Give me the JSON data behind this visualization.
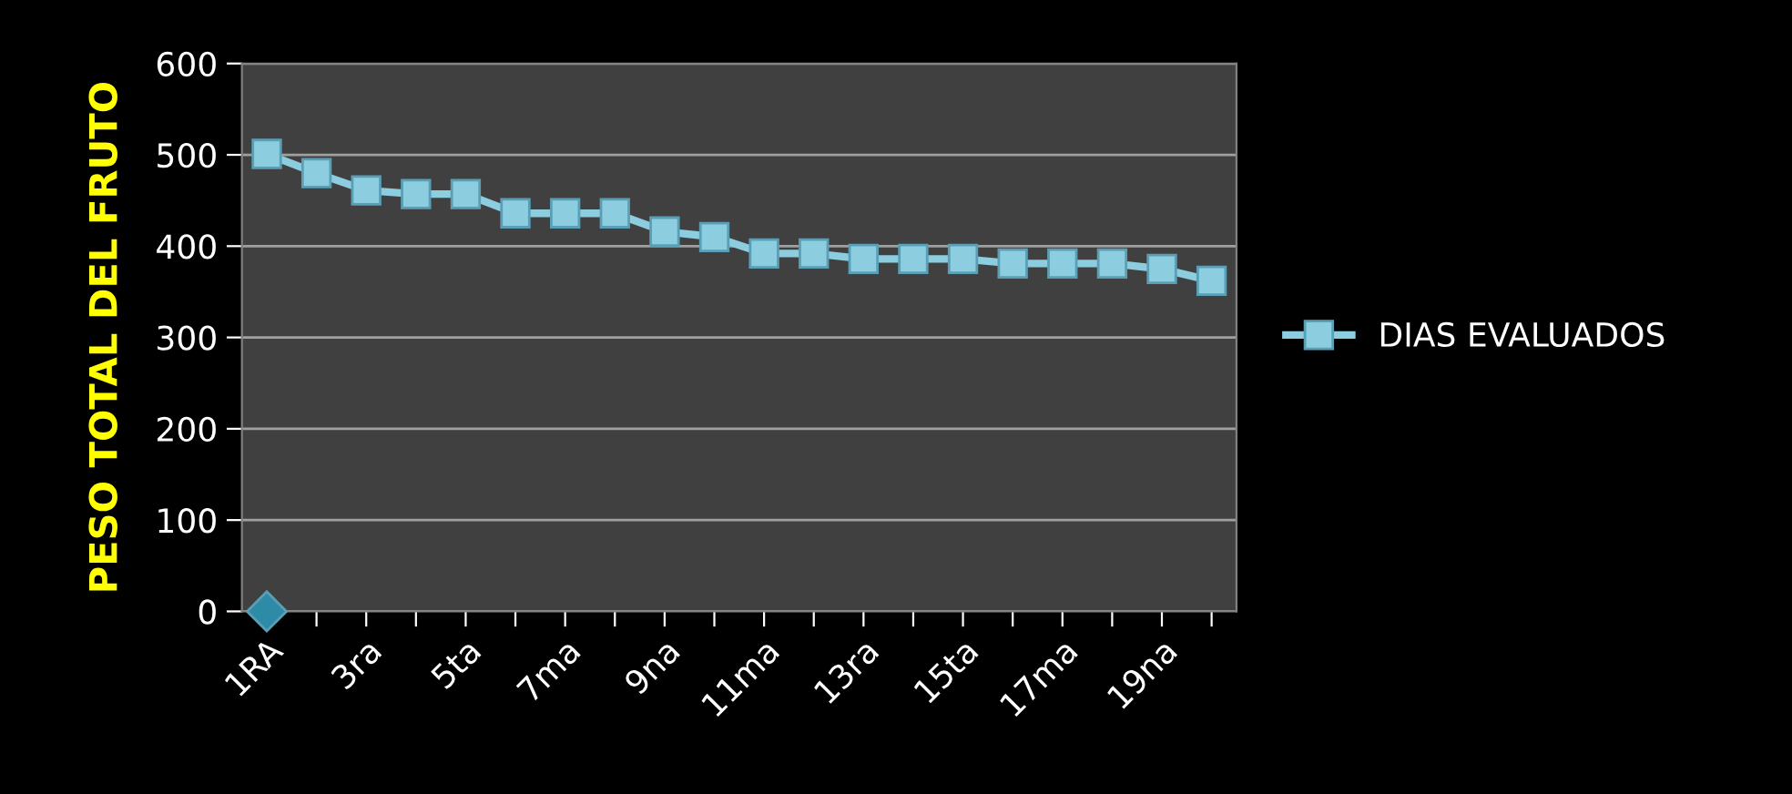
{
  "chart_data": {
    "type": "line",
    "ylabel": "PESO TOTAL DEL FRUTO",
    "categories": [
      "1RA",
      null,
      "3ra",
      null,
      "5ta",
      null,
      "7ma",
      null,
      "9na",
      null,
      "11ma",
      null,
      "13ra",
      null,
      "15ta",
      null,
      "17ma",
      null,
      "19na",
      null
    ],
    "series": [
      {
        "name": "DIAS EVALUADOS",
        "color": "#8ccde0",
        "marker": "square",
        "values": [
          501,
          480,
          461,
          457,
          457,
          436,
          436,
          436,
          416,
          410,
          392,
          392,
          386,
          386,
          386,
          381,
          381,
          381,
          375,
          362
        ]
      },
      {
        "color": "#2e8ba8",
        "marker": "diamond",
        "values": [
          0,
          null,
          null,
          null,
          null,
          null,
          null,
          null,
          null,
          null,
          null,
          null,
          null,
          null,
          null,
          null,
          null,
          null,
          null,
          null
        ]
      }
    ],
    "ylim": [
      0,
      600
    ],
    "yticks": [
      0,
      100,
      200,
      300,
      400,
      500,
      600
    ],
    "grid": "y",
    "legend": "right"
  }
}
